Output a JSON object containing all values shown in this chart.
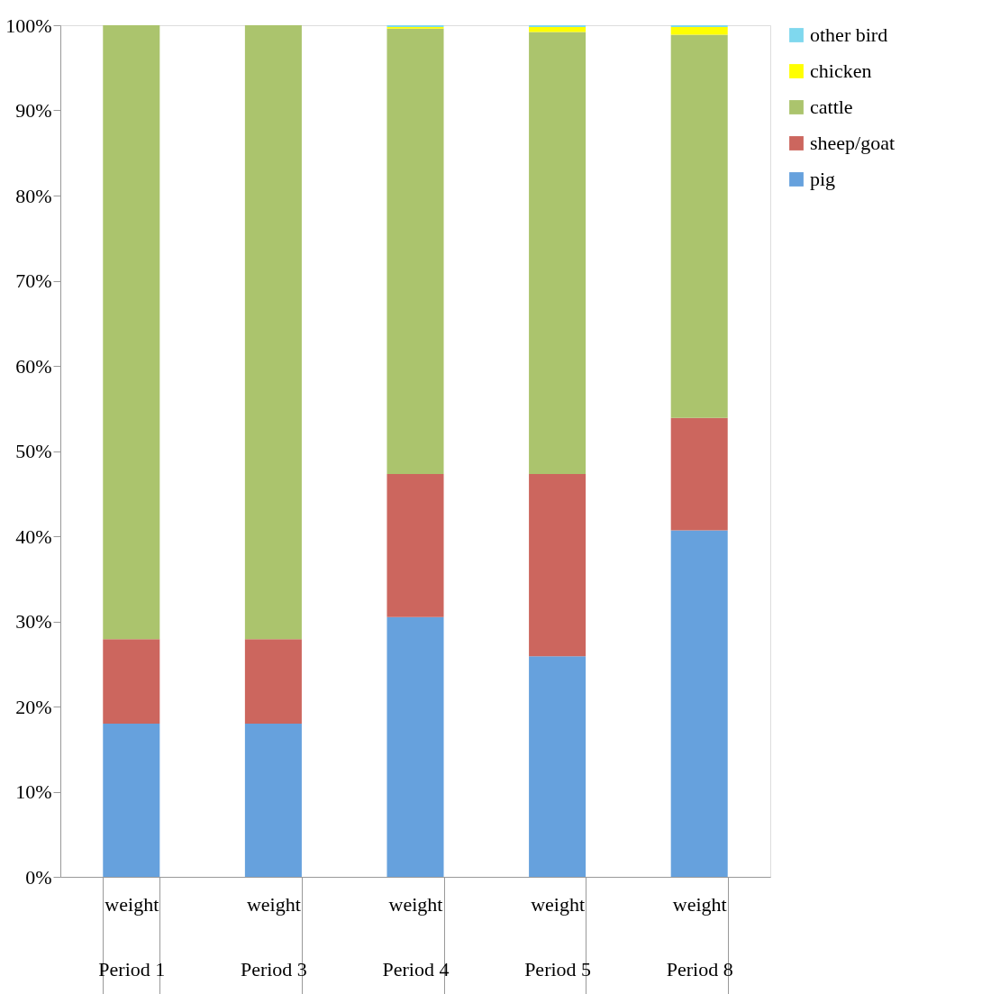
{
  "chart_data": {
    "type": "bar",
    "stacked": true,
    "categories": [
      "weight\nPeriod 1",
      "weight\nPeriod 3",
      "weight\nPeriod 4",
      "weight\nPeriod 5",
      "weight\nPeriod 8"
    ],
    "series": [
      {
        "name": "pig",
        "color": "#66a1dd",
        "values": [
          18.0,
          18.0,
          30.5,
          25.9,
          40.7
        ]
      },
      {
        "name": "sheep/goat",
        "color": "#cc665e",
        "values": [
          9.9,
          9.9,
          16.8,
          21.4,
          13.2
        ]
      },
      {
        "name": "cattle",
        "color": "#abc46d",
        "values": [
          72.1,
          72.1,
          52.3,
          51.9,
          45.0
        ]
      },
      {
        "name": "chicken",
        "color": "#ffff00",
        "values": [
          0,
          0,
          0.2,
          0.6,
          0.9
        ]
      },
      {
        "name": "other bird",
        "color": "#7fd8ee",
        "values": [
          0,
          0,
          0.2,
          0.2,
          0.2
        ]
      }
    ],
    "ylim": [
      0,
      100
    ],
    "yticks": [
      {
        "value": 0,
        "label": "0%"
      },
      {
        "value": 10,
        "label": "10%"
      },
      {
        "value": 20,
        "label": "20%"
      },
      {
        "value": 30,
        "label": "30%"
      },
      {
        "value": 40,
        "label": "40%"
      },
      {
        "value": 50,
        "label": "50%"
      },
      {
        "value": 60,
        "label": "60%"
      },
      {
        "value": 70,
        "label": "70%"
      },
      {
        "value": 80,
        "label": "80%"
      },
      {
        "value": 90,
        "label": "90%"
      },
      {
        "value": 100,
        "label": "100%"
      }
    ],
    "grid": false,
    "legend": "right"
  }
}
